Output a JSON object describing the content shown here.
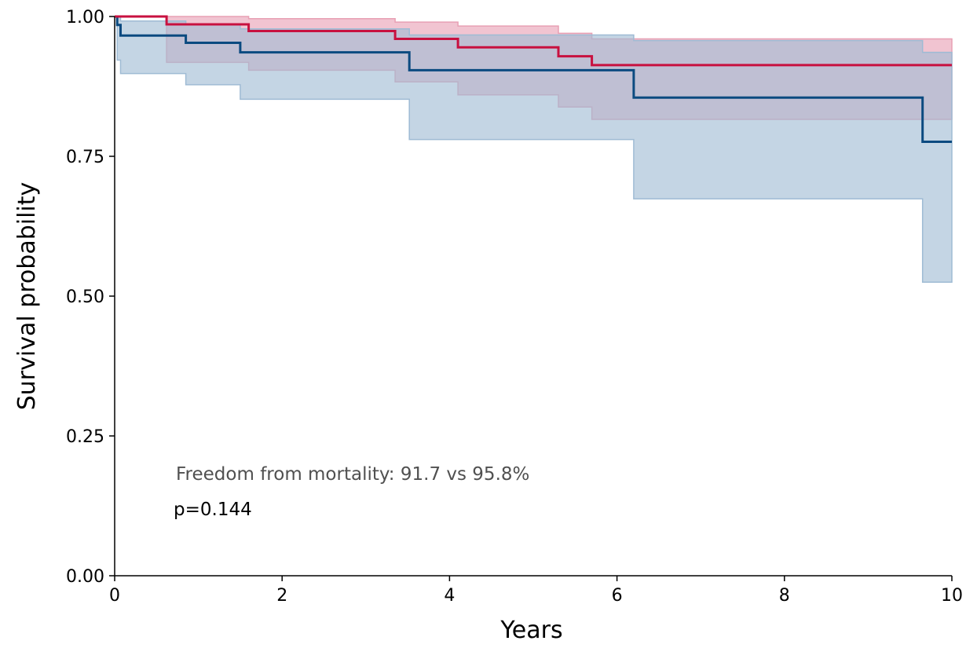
{
  "chart_data": {
    "type": "line",
    "subtype": "kaplan-meier step curves with confidence bands",
    "title": "",
    "xlabel": "Years",
    "ylabel": "Survival probability",
    "xlim": [
      0,
      10
    ],
    "ylim": [
      0,
      1
    ],
    "x_ticks": [
      0,
      2,
      4,
      6,
      8,
      10
    ],
    "x_tick_labels": [
      "0",
      "2",
      "4",
      "6",
      "8",
      "10"
    ],
    "y_ticks": [
      0,
      0.25,
      0.5,
      0.75,
      1
    ],
    "y_tick_labels": [
      "0.00",
      "0.25",
      "0.50",
      "0.75",
      "1.00"
    ],
    "grid": false,
    "legend": "none",
    "annotations": [
      "Freedom from mortality: 91.7 vs 95.8%",
      "p=0.144"
    ],
    "series": [
      {
        "color": "#e0b2bf",
        "line_color": "#c8103f",
        "band_color": "#e8a0b4",
        "x": [
          0,
          0.62,
          1.6,
          3.35,
          4.1,
          5.3,
          5.7,
          10
        ],
        "y": [
          1.0,
          0.986,
          0.974,
          0.96,
          0.945,
          0.929,
          0.913,
          0.913
        ],
        "ci_lower": [
          1.0,
          0.918,
          0.904,
          0.883,
          0.86,
          0.838,
          0.816,
          0.816
        ],
        "ci_upper": [
          1.0,
          1.0,
          0.996,
          0.99,
          0.983,
          0.97,
          0.96,
          0.96
        ]
      },
      {
        "color": "#bcd0e0",
        "line_color": "#0b4a80",
        "band_color": "#9fbbd4",
        "x": [
          0,
          0.03,
          0.07,
          0.85,
          1.5,
          3.52,
          6.2,
          9.65,
          10
        ],
        "y": [
          1.0,
          0.985,
          0.966,
          0.953,
          0.936,
          0.904,
          0.855,
          0.776,
          0.776
        ],
        "ci_lower": [
          1.0,
          0.922,
          0.898,
          0.878,
          0.852,
          0.78,
          0.674,
          0.525,
          0.525
        ],
        "ci_upper": [
          1.0,
          1.0,
          0.992,
          0.986,
          0.978,
          0.967,
          0.957,
          0.936,
          0.903
        ]
      }
    ]
  }
}
